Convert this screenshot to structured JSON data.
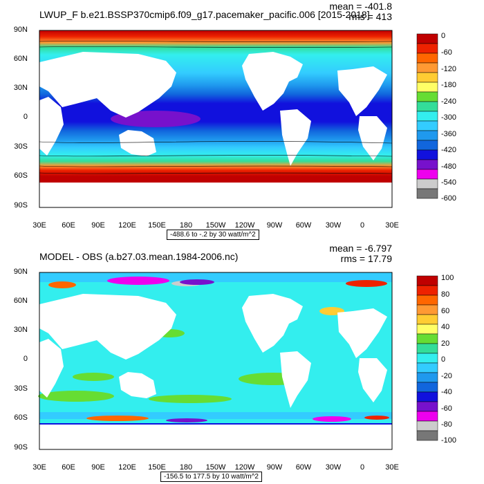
{
  "panels": [
    {
      "title": "LWUP_F b.e21.BSSP370cmip6.f09_g17.pacemaker_pacific.006 [2015-2018]",
      "mean": "mean = -401.8",
      "rms": "rms = 413",
      "range_label": "-488.6 to -.2 by 30 watt/m^2",
      "colorbar": {
        "labels": [
          "0",
          "-60",
          "-120",
          "-180",
          "-240",
          "-300",
          "-360",
          "-420",
          "-480",
          "-540",
          "-600"
        ],
        "colors": [
          "#c00000",
          "#ee2200",
          "#ff6600",
          "#ff9933",
          "#ffcc33",
          "#ffff66",
          "#66dd33",
          "#33dd99",
          "#33eeee",
          "#33ccff",
          "#1f99ee",
          "#1166dd",
          "#1111dd",
          "#7711cc",
          "#ee00ee",
          "#cccccc",
          "#777777"
        ]
      }
    },
    {
      "title": "MODEL - OBS (a.b27.03.mean.1984-2006.nc)",
      "mean": "mean = -6.797",
      "rms": "rms = 17.79",
      "range_label": "-156.5 to 177.5 by 10 watt/m^2",
      "colorbar": {
        "labels": [
          "100",
          "80",
          "60",
          "40",
          "20",
          "0",
          "-20",
          "-40",
          "-60",
          "-80",
          "-100"
        ],
        "colors": [
          "#c00000",
          "#ee2200",
          "#ff6600",
          "#ff9933",
          "#ffcc33",
          "#ffff66",
          "#66dd33",
          "#33dd99",
          "#33eeee",
          "#33ccff",
          "#1f99ee",
          "#1166dd",
          "#1111dd",
          "#7711cc",
          "#ee00ee",
          "#cccccc",
          "#777777"
        ]
      }
    }
  ],
  "lat_labels": [
    "90N",
    "60N",
    "30N",
    "0",
    "30S",
    "60S",
    "90S"
  ],
  "lon_labels": [
    "30E",
    "60E",
    "90E",
    "120E",
    "150E",
    "180",
    "150W",
    "120W",
    "90W",
    "60W",
    "30W",
    "0",
    "30E"
  ]
}
